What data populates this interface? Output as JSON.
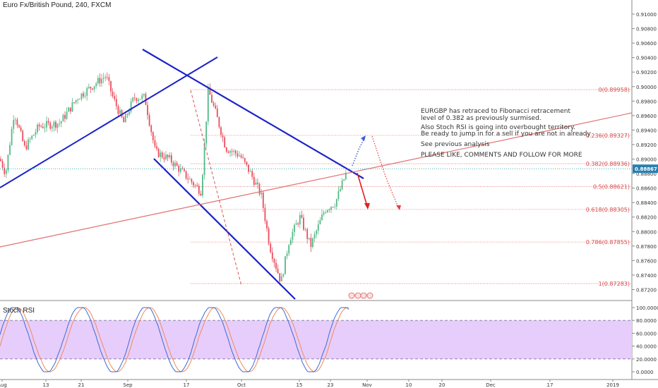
{
  "chart_data": {
    "type": "candlestick",
    "title": "Euro Fx/British Pound, 240, FXCM",
    "price_axis": {
      "min": 0.8712,
      "max": 0.911,
      "ticks": [
        "0.91000",
        "0.90800",
        "0.90600",
        "0.90400",
        "0.90200",
        "0.90000",
        "0.89800",
        "0.89600",
        "0.89400",
        "0.89200",
        "0.89000",
        "0.88800",
        "0.88600",
        "0.88400",
        "0.88200",
        "0.88000",
        "0.87800",
        "0.87600",
        "0.87400",
        "0.87200"
      ],
      "current_price": "0.88867",
      "current_value": 0.88867
    },
    "time_axis": {
      "labels": [
        "Aug",
        "13",
        "21",
        "Sep",
        "17",
        "Oct",
        "15",
        "23",
        "Nov",
        "10",
        "20",
        "Dec",
        "17",
        "2019"
      ]
    },
    "fibonacci": [
      {
        "label": "0(0.89958)",
        "value": 0.89958
      },
      {
        "label": "0.236(0.89327)",
        "value": 0.89327
      },
      {
        "label": "0.382(0.88936)",
        "value": 0.88936
      },
      {
        "label": "0.5(0.88621)",
        "value": 0.88621
      },
      {
        "label": "0.618(0.88305)",
        "value": 0.88305
      },
      {
        "label": "0.786(0.87855)",
        "value": 0.87855
      },
      {
        "label": "1(0.87283)",
        "value": 0.87283
      }
    ],
    "annotations": [
      "EURGBP has retraced to Fibonacci retracement",
      "level of 0.382 as previously surmised.",
      "Also Stoch RSI is going into overbought territory.",
      "Be ready to jump in for a sell if you are not in already",
      "See previous analysis",
      "PLEASE LIKE, COMMENTS AND FOLLOW FOR MORE"
    ],
    "indicator": {
      "name": "Stoch RSI",
      "ticks": [
        "100.0000",
        "80.0000",
        "60.0000",
        "40.0000",
        "20.0000",
        "0.0000"
      ],
      "overbought": 80,
      "oversold": 20
    },
    "colors": {
      "up": "#53b987",
      "down": "#eb4d5c",
      "trendline": "#1a22c8",
      "fib": "#e57373",
      "band": "#e7cdfb"
    }
  }
}
